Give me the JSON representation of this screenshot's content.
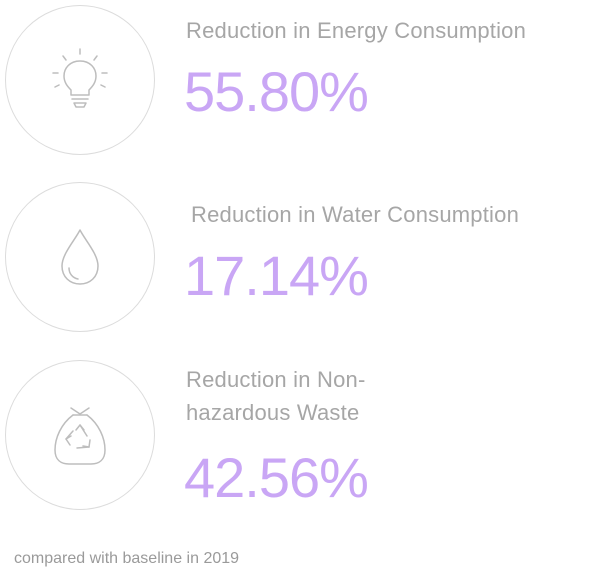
{
  "stats": [
    {
      "icon": "lightbulb-icon",
      "label": "Reduction in Energy Consumption",
      "value": "55.80%"
    },
    {
      "icon": "water-drop-icon",
      "label": "Reduction in Water Consumption",
      "value": "17.14%"
    },
    {
      "icon": "recycle-bag-icon",
      "label_line1": "Reduction in Non-",
      "label_line2": "hazardous Waste",
      "value": "42.56%"
    }
  ],
  "footnote": "compared with baseline in 2019",
  "colors": {
    "accent": "#c9a6f5",
    "label": "#a6a6a6",
    "icon": "#bdbdbd",
    "circle": "#dcdcdc"
  }
}
